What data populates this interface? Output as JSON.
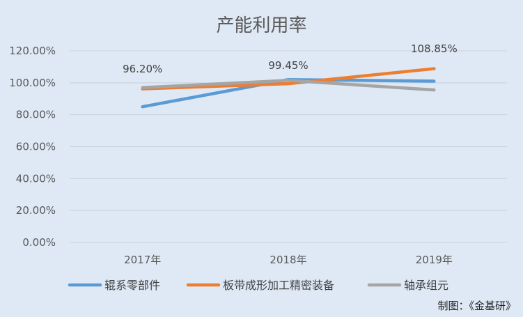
{
  "chart_data": {
    "type": "line",
    "title": "产能利用率",
    "categories": [
      "2017年",
      "2018年",
      "2019年"
    ],
    "series": [
      {
        "name": "辊系零部件",
        "color": "#5b9bd5",
        "values": [
          85.0,
          102.0,
          101.0
        ]
      },
      {
        "name": "板带成形加工精密装备",
        "color": "#ed7d31",
        "values": [
          96.2,
          99.45,
          108.85
        ]
      },
      {
        "name": "轴承组元",
        "color": "#a5a5a5",
        "values": [
          97.0,
          101.5,
          95.5
        ]
      }
    ],
    "data_labels": [
      {
        "series": 1,
        "index": 0,
        "text": "96.20%"
      },
      {
        "series": 1,
        "index": 1,
        "text": "99.45%"
      },
      {
        "series": 1,
        "index": 2,
        "text": "108.85%"
      }
    ],
    "y_ticks": [
      "0.00%",
      "20.00%",
      "40.00%",
      "60.00%",
      "80.00%",
      "100.00%",
      "120.00%"
    ],
    "ylim": [
      0,
      120
    ],
    "grid": true,
    "legend": "bottom"
  },
  "source_note": "制图：《金基研》"
}
